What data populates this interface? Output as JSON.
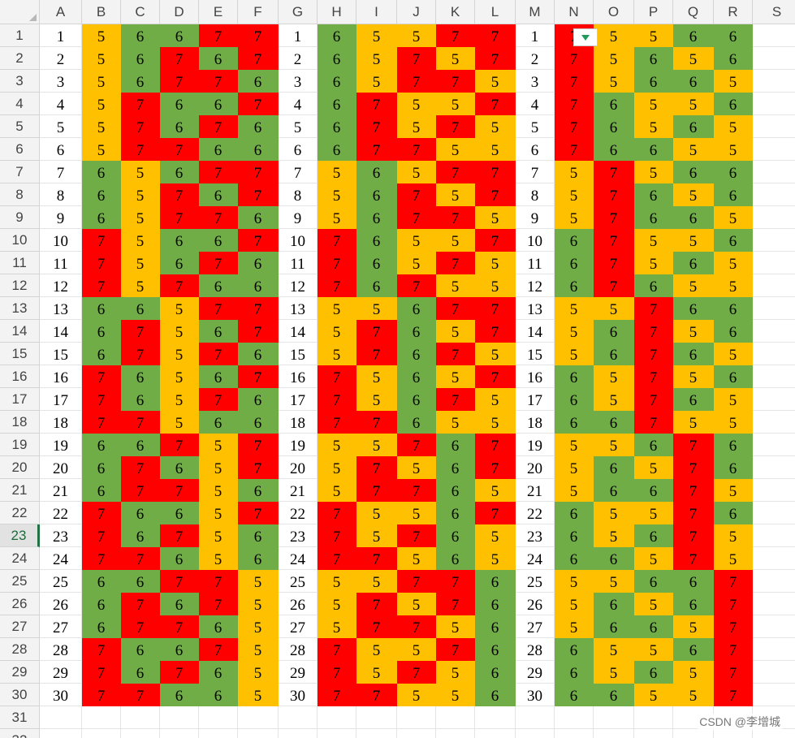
{
  "columns": [
    "A",
    "B",
    "C",
    "D",
    "E",
    "F",
    "G",
    "H",
    "I",
    "J",
    "K",
    "L",
    "M",
    "N",
    "O",
    "P",
    "Q",
    "R",
    "S"
  ],
  "row_labels": [
    "1",
    "2",
    "3",
    "4",
    "5",
    "6",
    "7",
    "8",
    "9",
    "10",
    "11",
    "12",
    "13",
    "14",
    "15",
    "16",
    "17",
    "18",
    "19",
    "20",
    "21",
    "22",
    "23",
    "24",
    "25",
    "26",
    "27",
    "28",
    "29",
    "30",
    "31",
    "32"
  ],
  "active_row": 23,
  "colors": {
    "5": "#FFC000",
    "6": "#70AD47",
    "7": "#FF0000"
  },
  "blocks": [
    {
      "index_column": "A",
      "value_columns": [
        "B",
        "C",
        "D",
        "E",
        "F"
      ],
      "rows": [
        [
          "5",
          "6",
          "6",
          "7",
          "7"
        ],
        [
          "5",
          "6",
          "7",
          "6",
          "7"
        ],
        [
          "5",
          "6",
          "7",
          "7",
          "6"
        ],
        [
          "5",
          "7",
          "6",
          "6",
          "7"
        ],
        [
          "5",
          "7",
          "6",
          "7",
          "6"
        ],
        [
          "5",
          "7",
          "7",
          "6",
          "6"
        ],
        [
          "6",
          "5",
          "6",
          "7",
          "7"
        ],
        [
          "6",
          "5",
          "7",
          "6",
          "7"
        ],
        [
          "6",
          "5",
          "7",
          "7",
          "6"
        ],
        [
          "7",
          "5",
          "6",
          "6",
          "7"
        ],
        [
          "7",
          "5",
          "6",
          "7",
          "6"
        ],
        [
          "7",
          "5",
          "7",
          "6",
          "6"
        ],
        [
          "6",
          "6",
          "5",
          "7",
          "7"
        ],
        [
          "6",
          "7",
          "5",
          "6",
          "7"
        ],
        [
          "6",
          "7",
          "5",
          "7",
          "6"
        ],
        [
          "7",
          "6",
          "5",
          "6",
          "7"
        ],
        [
          "7",
          "6",
          "5",
          "7",
          "6"
        ],
        [
          "7",
          "7",
          "5",
          "6",
          "6"
        ],
        [
          "6",
          "6",
          "7",
          "5",
          "7"
        ],
        [
          "6",
          "7",
          "6",
          "5",
          "7"
        ],
        [
          "6",
          "7",
          "7",
          "5",
          "6"
        ],
        [
          "7",
          "6",
          "6",
          "5",
          "7"
        ],
        [
          "7",
          "6",
          "7",
          "5",
          "6"
        ],
        [
          "7",
          "7",
          "6",
          "5",
          "6"
        ],
        [
          "6",
          "6",
          "7",
          "7",
          "5"
        ],
        [
          "6",
          "7",
          "6",
          "7",
          "5"
        ],
        [
          "6",
          "7",
          "7",
          "6",
          "5"
        ],
        [
          "7",
          "6",
          "6",
          "7",
          "5"
        ],
        [
          "7",
          "6",
          "7",
          "6",
          "5"
        ],
        [
          "7",
          "7",
          "6",
          "6",
          "5"
        ]
      ]
    },
    {
      "index_column": "G",
      "value_columns": [
        "H",
        "I",
        "J",
        "K",
        "L"
      ],
      "rows": [
        [
          "6",
          "5",
          "5",
          "7",
          "7"
        ],
        [
          "6",
          "5",
          "7",
          "5",
          "7"
        ],
        [
          "6",
          "5",
          "7",
          "7",
          "5"
        ],
        [
          "6",
          "7",
          "5",
          "5",
          "7"
        ],
        [
          "6",
          "7",
          "5",
          "7",
          "5"
        ],
        [
          "6",
          "7",
          "7",
          "5",
          "5"
        ],
        [
          "5",
          "6",
          "5",
          "7",
          "7"
        ],
        [
          "5",
          "6",
          "7",
          "5",
          "7"
        ],
        [
          "5",
          "6",
          "7",
          "7",
          "5"
        ],
        [
          "7",
          "6",
          "5",
          "5",
          "7"
        ],
        [
          "7",
          "6",
          "5",
          "7",
          "5"
        ],
        [
          "7",
          "6",
          "7",
          "5",
          "5"
        ],
        [
          "5",
          "5",
          "6",
          "7",
          "7"
        ],
        [
          "5",
          "7",
          "6",
          "5",
          "7"
        ],
        [
          "5",
          "7",
          "6",
          "7",
          "5"
        ],
        [
          "7",
          "5",
          "6",
          "5",
          "7"
        ],
        [
          "7",
          "5",
          "6",
          "7",
          "5"
        ],
        [
          "7",
          "7",
          "6",
          "5",
          "5"
        ],
        [
          "5",
          "5",
          "7",
          "6",
          "7"
        ],
        [
          "5",
          "7",
          "5",
          "6",
          "7"
        ],
        [
          "5",
          "7",
          "7",
          "6",
          "5"
        ],
        [
          "7",
          "5",
          "5",
          "6",
          "7"
        ],
        [
          "7",
          "5",
          "7",
          "6",
          "5"
        ],
        [
          "7",
          "7",
          "5",
          "6",
          "5"
        ],
        [
          "5",
          "5",
          "7",
          "7",
          "6"
        ],
        [
          "5",
          "7",
          "5",
          "7",
          "6"
        ],
        [
          "5",
          "7",
          "7",
          "5",
          "6"
        ],
        [
          "7",
          "5",
          "5",
          "7",
          "6"
        ],
        [
          "7",
          "5",
          "7",
          "5",
          "6"
        ],
        [
          "7",
          "7",
          "5",
          "5",
          "6"
        ]
      ]
    },
    {
      "index_column": "M",
      "value_columns": [
        "N",
        "O",
        "P",
        "Q",
        "R"
      ],
      "rows": [
        [
          "7",
          "5",
          "5",
          "6",
          "6"
        ],
        [
          "7",
          "5",
          "6",
          "5",
          "6"
        ],
        [
          "7",
          "5",
          "6",
          "6",
          "5"
        ],
        [
          "7",
          "6",
          "5",
          "5",
          "6"
        ],
        [
          "7",
          "6",
          "5",
          "6",
          "5"
        ],
        [
          "7",
          "6",
          "6",
          "5",
          "5"
        ],
        [
          "5",
          "7",
          "5",
          "6",
          "6"
        ],
        [
          "5",
          "7",
          "6",
          "5",
          "6"
        ],
        [
          "5",
          "7",
          "6",
          "6",
          "5"
        ],
        [
          "6",
          "7",
          "5",
          "5",
          "6"
        ],
        [
          "6",
          "7",
          "5",
          "6",
          "5"
        ],
        [
          "6",
          "7",
          "6",
          "5",
          "5"
        ],
        [
          "5",
          "5",
          "7",
          "6",
          "6"
        ],
        [
          "5",
          "6",
          "7",
          "5",
          "6"
        ],
        [
          "5",
          "6",
          "7",
          "6",
          "5"
        ],
        [
          "6",
          "5",
          "7",
          "5",
          "6"
        ],
        [
          "6",
          "5",
          "7",
          "6",
          "5"
        ],
        [
          "6",
          "6",
          "7",
          "5",
          "5"
        ],
        [
          "5",
          "5",
          "6",
          "7",
          "6"
        ],
        [
          "5",
          "6",
          "5",
          "7",
          "6"
        ],
        [
          "5",
          "6",
          "6",
          "7",
          "5"
        ],
        [
          "6",
          "5",
          "5",
          "7",
          "6"
        ],
        [
          "6",
          "5",
          "6",
          "7",
          "5"
        ],
        [
          "6",
          "6",
          "5",
          "7",
          "5"
        ],
        [
          "5",
          "5",
          "6",
          "6",
          "7"
        ],
        [
          "5",
          "6",
          "5",
          "6",
          "7"
        ],
        [
          "5",
          "6",
          "6",
          "5",
          "7"
        ],
        [
          "6",
          "5",
          "5",
          "6",
          "7"
        ],
        [
          "6",
          "5",
          "6",
          "5",
          "7"
        ],
        [
          "6",
          "6",
          "5",
          "5",
          "7"
        ]
      ]
    }
  ],
  "index_values": [
    "1",
    "2",
    "3",
    "4",
    "5",
    "6",
    "7",
    "8",
    "9",
    "10",
    "11",
    "12",
    "13",
    "14",
    "15",
    "16",
    "17",
    "18",
    "19",
    "20",
    "21",
    "22",
    "23",
    "24",
    "25",
    "26",
    "27",
    "28",
    "29",
    "30"
  ],
  "dropdown": {
    "cell": "N1",
    "icon": "dropdown-arrow-icon"
  },
  "watermark": "CSDN @李增城"
}
